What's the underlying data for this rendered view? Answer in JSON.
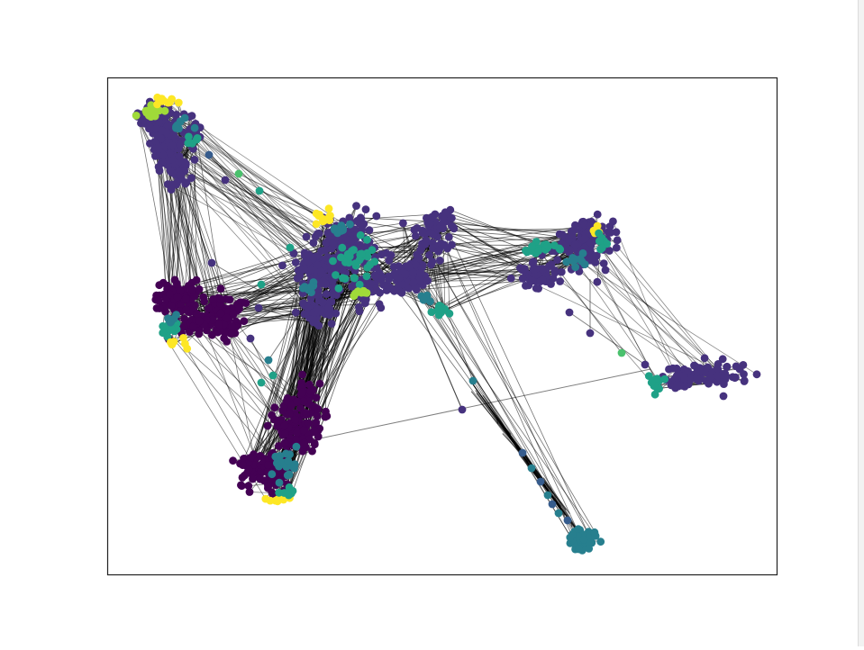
{
  "figure": {
    "type": "network-graph",
    "axes_frame": true,
    "ticks": false,
    "node_colormap": "viridis",
    "edge_color": "#000000",
    "background": "#ffffff",
    "colors": {
      "dark_purple": "#440154",
      "purple": "#46327e",
      "indigo": "#365c8d",
      "teal": "#277f8e",
      "green": "#1fa187",
      "light_green": "#4ac16d",
      "lime": "#a0da39",
      "yellow": "#fde725"
    },
    "clusters": [
      {
        "name": "upper-left-cluster",
        "dominant_color": "purple",
        "accent_colors": [
          "lime",
          "yellow",
          "teal"
        ]
      },
      {
        "name": "left-cluster",
        "dominant_color": "dark_purple",
        "accent_colors": [
          "green",
          "yellow"
        ]
      },
      {
        "name": "central-cluster",
        "dominant_color": "purple",
        "accent_colors": [
          "green",
          "lime",
          "yellow",
          "teal"
        ]
      },
      {
        "name": "central-right-cluster",
        "dominant_color": "purple",
        "accent_colors": [
          "green"
        ]
      },
      {
        "name": "right-cluster",
        "dominant_color": "purple",
        "accent_colors": [
          "teal",
          "green",
          "yellow"
        ]
      },
      {
        "name": "far-right-cluster",
        "dominant_color": "purple",
        "accent_colors": [
          "green"
        ]
      },
      {
        "name": "lower-left-cluster",
        "dominant_color": "dark_purple",
        "accent_colors": [
          "teal",
          "green",
          "yellow"
        ]
      },
      {
        "name": "bottom-chain-cluster",
        "dominant_color": "teal",
        "accent_colors": []
      }
    ]
  }
}
